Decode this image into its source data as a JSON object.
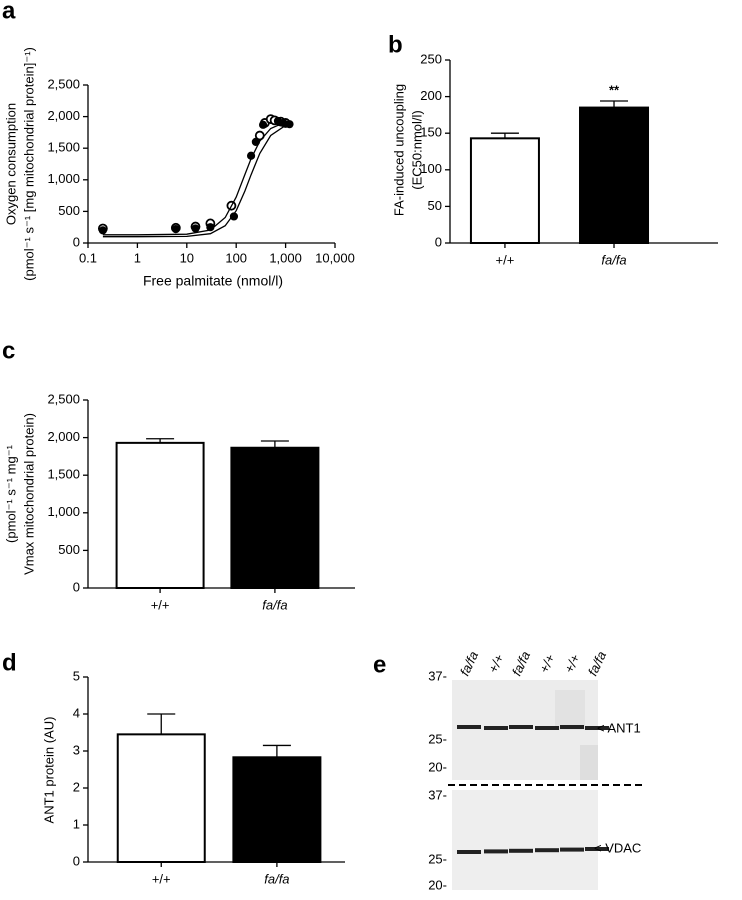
{
  "chart_data": [
    {
      "type": "scatter",
      "panel": "a",
      "x_label": "Free palmitate (nmol/l)",
      "y_label": [
        "Oxygen consumption",
        "(pmol⁻¹ s⁻¹ [mg mitochondrial protein]⁻¹)"
      ],
      "xscale": "log",
      "xlim": [
        0.1,
        10000
      ],
      "xticks": [
        0.1,
        1,
        10,
        100,
        {
          "value": 1000,
          "label": "1,000"
        },
        {
          "value": 10000,
          "label": "10,000"
        }
      ],
      "ylim": [
        0,
        2500
      ],
      "yticks": [
        0,
        500,
        {
          "value": 1000,
          "label": "1,000"
        },
        {
          "value": 1500,
          "label": "1,500"
        },
        {
          "value": 2000,
          "label": "2,000"
        },
        {
          "value": 2500,
          "label": "2,500"
        }
      ],
      "series": [
        {
          "marker": "open",
          "color": "#000000",
          "x": [
            0.2,
            6,
            15,
            30,
            80,
            300,
            380,
            500,
            600,
            800,
            1000
          ],
          "values": [
            230,
            240,
            260,
            310,
            590,
            1700,
            1900,
            1960,
            1940,
            1920,
            1900
          ]
        },
        {
          "marker": "filled",
          "color": "#000000",
          "x": [
            0.2,
            6,
            15,
            30,
            90,
            200,
            250,
            350,
            700,
            900,
            1200
          ],
          "values": [
            200,
            220,
            230,
            250,
            420,
            1380,
            1600,
            1870,
            1930,
            1900,
            1880
          ]
        },
        {
          "marker": "line",
          "color": "#000000",
          "x": [
            0.2,
            1,
            10,
            30,
            60,
            100,
            150,
            200,
            300,
            500,
            1000
          ],
          "values": [
            130,
            130,
            139,
            206,
            403,
            727,
            1084,
            1335,
            1613,
            1812,
            1914
          ]
        },
        {
          "marker": "line",
          "color": "#000000",
          "x": [
            0.2,
            1,
            10,
            30,
            60,
            100,
            150,
            200,
            300,
            500,
            1000
          ],
          "values": [
            100,
            100,
            105,
            147,
            273,
            511,
            822,
            1081,
            1418,
            1701,
            1860
          ]
        }
      ]
    },
    {
      "type": "bar",
      "panel": "b",
      "y_label": [
        "FA-induced uncoupling",
        "(EC50:nmol/l)"
      ],
      "categories": [
        "+/+",
        "fa/fa"
      ],
      "values": [
        143,
        185
      ],
      "errors": [
        7,
        9
      ],
      "colors": [
        "#ffffff",
        "#000000"
      ],
      "annotations": [
        "",
        "**"
      ],
      "ylim": [
        0,
        250
      ],
      "yticks": [
        0,
        50,
        100,
        150,
        200,
        250
      ]
    },
    {
      "type": "bar",
      "panel": "c",
      "y_label": [
        "(pmol⁻¹ s⁻¹ mg⁻¹",
        "Vmax mitochondrial protein)"
      ],
      "categories": [
        "+/+",
        "fa/fa"
      ],
      "values": [
        1930,
        1865
      ],
      "errors": [
        55,
        90
      ],
      "colors": [
        "#ffffff",
        "#000000"
      ],
      "ylim": [
        0,
        2500
      ],
      "yticks": [
        0,
        500,
        {
          "value": 1000,
          "label": "1,000"
        },
        {
          "value": 1500,
          "label": "1,500"
        },
        {
          "value": 2000,
          "label": "2,000"
        },
        {
          "value": 2500,
          "label": "2,500"
        }
      ]
    },
    {
      "type": "bar",
      "panel": "d",
      "y_label": [
        "ANT1 protein (AU)"
      ],
      "categories": [
        "+/+",
        "fa/fa"
      ],
      "values": [
        3.45,
        2.83
      ],
      "errors": [
        0.55,
        0.32
      ],
      "colors": [
        "#ffffff",
        "#000000"
      ],
      "ylim": [
        0,
        5
      ],
      "yticks": [
        0,
        1,
        2,
        3,
        4,
        5
      ]
    }
  ],
  "blot": {
    "panel": "e",
    "lanes": [
      "fa/fa",
      "+/+",
      "fa/fa",
      "+/+",
      "+/+",
      "fa/fa"
    ],
    "markers_top": [
      "37-",
      "25-",
      "20-"
    ],
    "markers_bottom": [
      "37-",
      "25-",
      "20-"
    ],
    "band_top": "< ANT1",
    "band_bottom": "< VDAC"
  }
}
